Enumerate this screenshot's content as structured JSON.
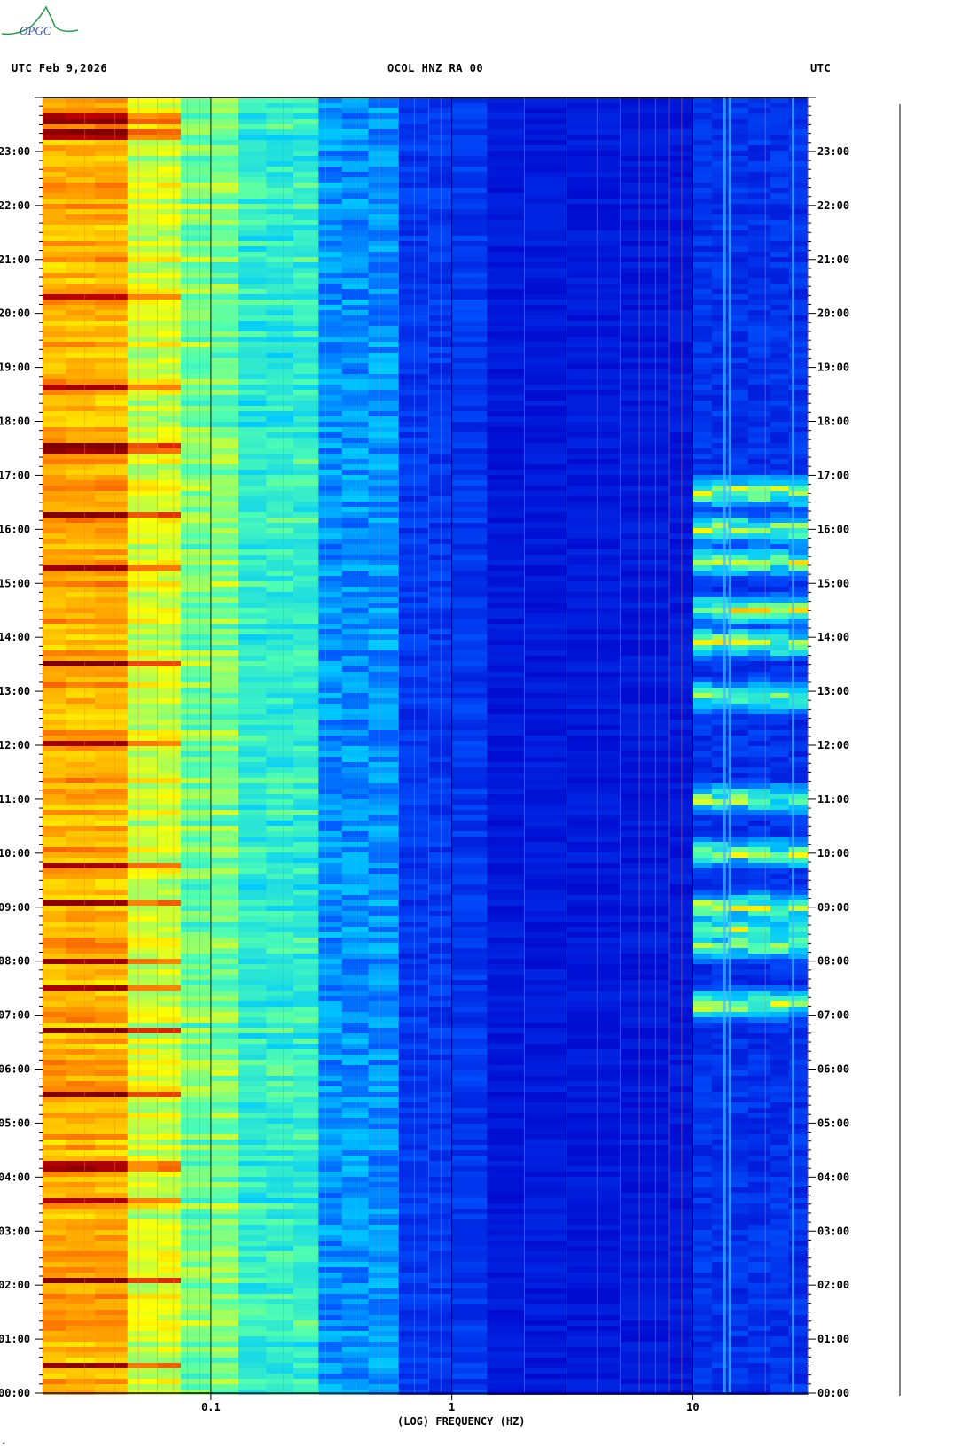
{
  "header": {
    "logo_text": "OPGC",
    "left": "UTC  Feb 9,2026",
    "center": "OCOL HNZ RA 00",
    "right": "UTC"
  },
  "chart_data": {
    "type": "heatmap",
    "title": "OCOL HNZ RA 00",
    "xlabel": "(LOG) FREQUENCY (HZ)",
    "ylabel": "UTC",
    "x_scale": "log",
    "x_ticks": [
      "0.1",
      "1",
      "10"
    ],
    "x_tick_values": [
      0.1,
      1,
      10
    ],
    "xlim": [
      0.02,
      30
    ],
    "y_ticks": [
      "00:00",
      "01:00",
      "02:00",
      "03:00",
      "04:00",
      "05:00",
      "06:00",
      "07:00",
      "08:00",
      "09:00",
      "10:00",
      "11:00",
      "12:00",
      "13:00",
      "14:00",
      "15:00",
      "16:00",
      "17:00",
      "18:00",
      "19:00",
      "20:00",
      "21:00",
      "22:00",
      "23:00"
    ],
    "ylim_hours": [
      0,
      24
    ],
    "colormap": [
      "#0000c8",
      "#0050ff",
      "#00c8ff",
      "#50ffb0",
      "#ffff00",
      "#ff8000",
      "#d00000",
      "#800000"
    ],
    "grid_line_color": "#e08060",
    "decade_line_color": "#000000",
    "hot_hours": [
      23.6,
      23.3,
      20.3,
      18.6,
      17.5,
      16.3,
      15.3,
      13.5,
      12.0,
      9.8,
      9.1,
      8.0,
      7.5,
      6.7,
      5.5,
      4.2,
      3.6,
      2.1,
      0.5
    ],
    "high_freq_activity_hours": [
      7.2,
      8.3,
      8.6,
      9.0,
      10.0,
      11.0,
      12.9,
      13.9,
      14.5,
      15.4,
      16.0,
      16.7
    ]
  },
  "footer": {
    "mark": "*"
  }
}
